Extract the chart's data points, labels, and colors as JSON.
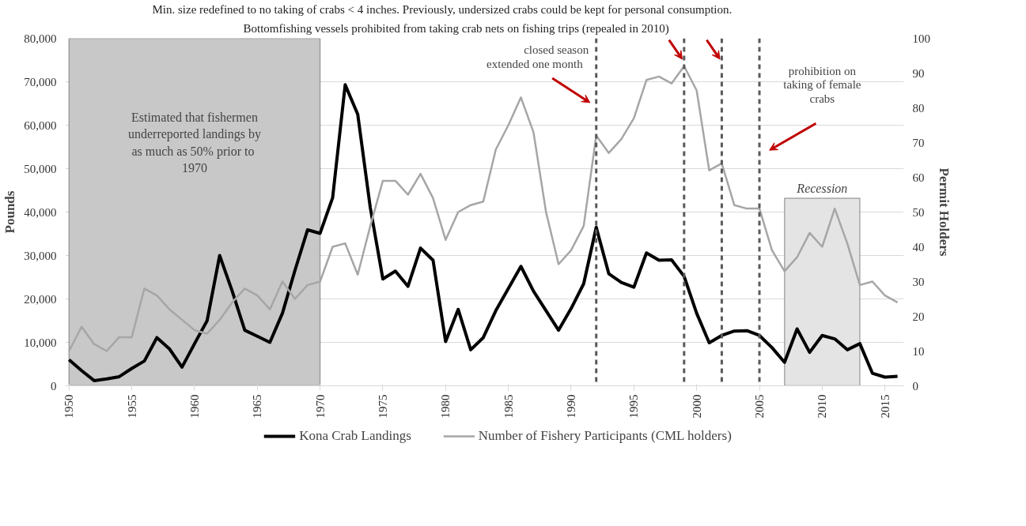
{
  "chart_data": {
    "type": "line",
    "x": [
      1950,
      1951,
      1952,
      1953,
      1954,
      1955,
      1956,
      1957,
      1958,
      1959,
      1960,
      1961,
      1962,
      1963,
      1964,
      1965,
      1966,
      1967,
      1968,
      1969,
      1970,
      1971,
      1972,
      1973,
      1974,
      1975,
      1976,
      1977,
      1978,
      1979,
      1980,
      1981,
      1982,
      1983,
      1984,
      1985,
      1986,
      1987,
      1988,
      1989,
      1990,
      1991,
      1992,
      1993,
      1994,
      1995,
      1996,
      1997,
      1998,
      1999,
      2000,
      2001,
      2002,
      2003,
      2004,
      2005,
      2006,
      2007,
      2008,
      2009,
      2010,
      2011,
      2012,
      2013,
      2014,
      2015,
      2016
    ],
    "series": [
      {
        "name": "Kona Crab Landings",
        "color": "#000000",
        "values": [
          6000,
          3500,
          1200,
          1600,
          2100,
          4000,
          5700,
          11100,
          8500,
          4300,
          9700,
          15000,
          30000,
          21800,
          12800,
          11400,
          10000,
          16700,
          26600,
          35900,
          35100,
          43300,
          69300,
          62500,
          41000,
          24600,
          26400,
          22900,
          31700,
          28900,
          10200,
          17600,
          8300,
          11100,
          17300,
          22400,
          27500,
          21800,
          17300,
          12800,
          17800,
          23500,
          36500,
          25800,
          23800,
          22700,
          30600,
          28900,
          29000,
          25200,
          16700,
          9900,
          11600,
          12600,
          12700,
          11600,
          8800,
          5400,
          13100,
          7700,
          11600,
          10800,
          8300,
          9700,
          2900,
          2000,
          2200
        ]
      },
      {
        "name": "Number of Fishery Participants (CML holders)",
        "color": "#a6a6a6",
        "axis": "y2",
        "values": [
          10,
          17,
          12,
          10,
          14,
          14,
          28,
          26,
          22,
          19,
          16,
          15,
          19,
          24,
          28,
          26,
          22,
          30,
          25,
          29,
          30,
          40,
          41,
          32,
          46,
          59,
          59,
          55,
          61,
          54,
          42,
          50,
          52,
          53,
          68,
          75,
          83,
          73,
          50,
          35,
          39,
          46,
          72,
          67,
          71,
          77,
          88,
          89,
          87,
          92,
          85,
          62,
          64,
          52,
          51,
          51,
          39,
          33,
          37,
          44,
          40,
          51,
          41,
          29,
          30,
          26,
          24
        ]
      }
    ],
    "xlim": [
      1949.7,
      2016.5
    ],
    "xticks": [
      1950,
      1955,
      1960,
      1965,
      1970,
      1975,
      1980,
      1985,
      1990,
      1995,
      2000,
      2005,
      2010,
      2015
    ],
    "ylim": [
      0,
      80000
    ],
    "yticks": [
      {
        "value": 0,
        "label": "0"
      },
      {
        "value": 10000,
        "label": "10,000"
      },
      {
        "value": 20000,
        "label": "20,000"
      },
      {
        "value": 30000,
        "label": "30,000"
      },
      {
        "value": 40000,
        "label": "40,000"
      },
      {
        "value": 50000,
        "label": "50,000"
      },
      {
        "value": 60000,
        "label": "60,000"
      },
      {
        "value": 70000,
        "label": "70,000"
      },
      {
        "value": 80000,
        "label": "80,000"
      }
    ],
    "y2lim": [
      0,
      100
    ],
    "y2ticks": [
      0,
      10,
      20,
      30,
      40,
      50,
      60,
      70,
      80,
      90,
      100
    ],
    "ylabel": "Pounds",
    "y2label": "Permit Holders",
    "grid": "y",
    "legend": "bottom",
    "line_style": "solid",
    "bands": [
      {
        "axis": "x",
        "from": 1950,
        "to": 1970,
        "label": "Estimated that fishermen\nunderreported landings by\nas much  as 50% prior to\n1970",
        "color": "#c8c8c8"
      },
      {
        "axis": "x",
        "from": 2007,
        "to": 2013,
        "label": "Recession",
        "color": "#e4e4e4"
      }
    ],
    "ref_lines": [
      {
        "axis": "x",
        "value": 1992,
        "label": "closed season\nextended  one  month",
        "color": "#595959",
        "line_style": "dashed"
      },
      {
        "axis": "x",
        "value": 1999,
        "label": "Bottomfishing  vessels prohibited from taking crab nets on fishing trips (repealed in 2010)",
        "color": "#595959",
        "line_style": "dashed"
      },
      {
        "axis": "x",
        "value": 2002,
        "label": "Min. size redefined to no taking of crabs < 4 inches. Previously, undersized crabs could be kept for personal consumption.",
        "color": "#595959",
        "line_style": "dashed"
      },
      {
        "axis": "x",
        "value": 2005,
        "label": "prohibition on\ntaking of female\ncrabs",
        "color": "#595959",
        "line_style": "dashed"
      }
    ]
  }
}
